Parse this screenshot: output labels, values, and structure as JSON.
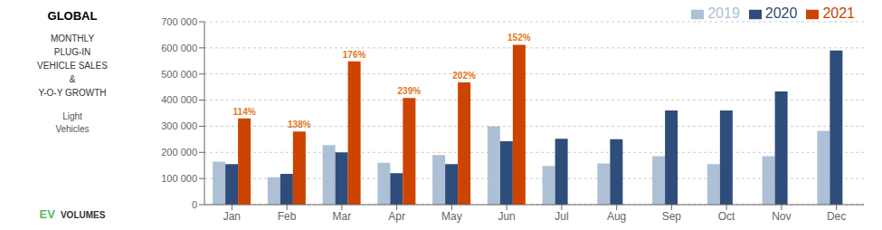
{
  "chart_data": {
    "type": "bar",
    "title": "GLOBAL",
    "subtitle": "MONTHLY\nPLUG-IN\nVEHICLE SALES\n&\nY-O-Y GROWTH",
    "categories": [
      "Jan",
      "Feb",
      "Mar",
      "Apr",
      "May",
      "Jun",
      "Jul",
      "Aug",
      "Sep",
      "Oct",
      "Nov",
      "Dec"
    ],
    "series": [
      {
        "name": "2019",
        "color": "#adc0d5",
        "values": [
          165000,
          105000,
          228000,
          160000,
          190000,
          300000,
          148000,
          158000,
          185000,
          155000,
          185000,
          282000
        ]
      },
      {
        "name": "2020",
        "color": "#2e4d7b",
        "values": [
          155000,
          118000,
          200000,
          120000,
          155000,
          243000,
          252000,
          250000,
          360000,
          360000,
          433000,
          590000
        ]
      },
      {
        "name": "2021",
        "color": "#cc4400",
        "values": [
          330000,
          280000,
          548000,
          408000,
          468000,
          612000,
          0,
          0,
          0,
          0,
          0,
          0
        ]
      }
    ],
    "ylim": [
      0,
      700000
    ],
    "yticks": [
      0,
      {
        "value": 100000,
        "label": "100 000"
      },
      {
        "value": 200000,
        "label": "200 000"
      },
      {
        "value": 300000,
        "label": "300 000"
      },
      {
        "value": 400000,
        "label": "400 000"
      },
      {
        "value": 500000,
        "label": "500 000"
      },
      {
        "value": 600000,
        "label": "600 000"
      },
      {
        "value": 700000,
        "label": "700 000"
      }
    ],
    "grid": true,
    "legend": "upper right",
    "annotations": [
      {
        "text": "114%",
        "category": "Jan",
        "series": "2021",
        "color": "#e07820"
      },
      {
        "text": "138%",
        "category": "Feb",
        "series": "2021",
        "color": "#e07820"
      },
      {
        "text": "176%",
        "category": "Mar",
        "series": "2021",
        "color": "#e07820"
      },
      {
        "text": "239%",
        "category": "Apr",
        "series": "2021",
        "color": "#e07820"
      },
      {
        "text": "202%",
        "category": "May",
        "series": "2021",
        "color": "#e07820"
      },
      {
        "text": "152%",
        "category": "Jun",
        "series": "2021",
        "color": "#e07820"
      },
      {
        "text": "Light\nVehicles"
      },
      {
        "text": "EV",
        "color": "#5cb85c"
      },
      {
        "text": "VOLUMES",
        "color": "#333333"
      }
    ]
  }
}
